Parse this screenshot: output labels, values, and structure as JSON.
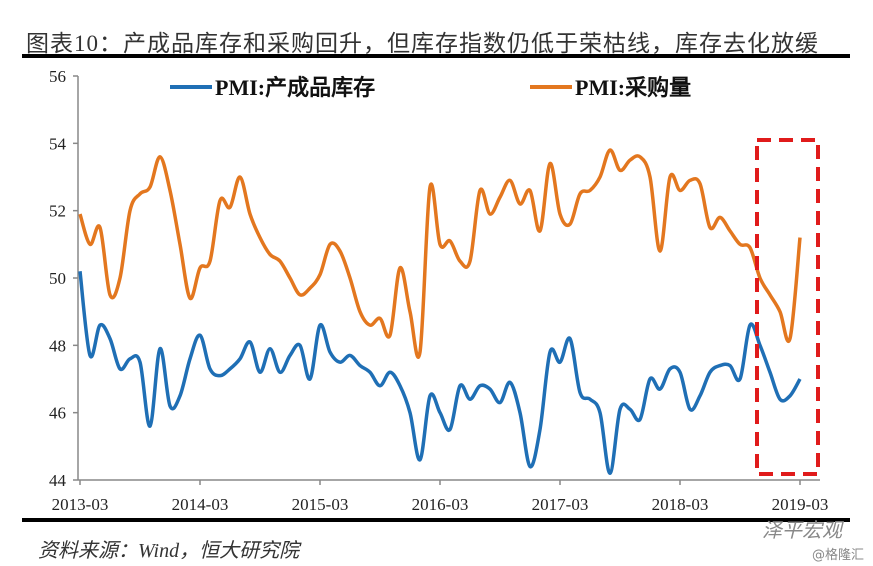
{
  "title": "图表10：产成品库存和采购回升，但库存指数仍低于荣枯线，库存去化放缓",
  "source": "资料来源：Wind，恒大研究院",
  "watermarks": [
    "泽平宏观",
    "@格隆汇"
  ],
  "chart_data": {
    "type": "line",
    "title": "图表10：产成品库存和采购回升，但库存指数仍低于荣枯线，库存去化放缓",
    "xlabel": "",
    "ylabel": "",
    "x_start": "2013-03",
    "x_end": "2019-03",
    "x_ticks": [
      "2013-03",
      "2014-03",
      "2015-03",
      "2016-03",
      "2017-03",
      "2018-03",
      "2019-03"
    ],
    "ylim": [
      44,
      56
    ],
    "y_ticks": [
      44,
      46,
      48,
      50,
      52,
      54,
      56
    ],
    "grid": false,
    "legend_position": "top",
    "annotation": "red dashed box highlighting 2018-11 to 2019-03",
    "series": [
      {
        "name": "PMI:产成品库存",
        "color": "#1f6fb5",
        "values": [
          50.2,
          47.7,
          48.6,
          48.2,
          47.3,
          47.6,
          47.5,
          45.6,
          47.9,
          46.2,
          46.5,
          47.6,
          48.3,
          47.3,
          47.1,
          47.3,
          47.6,
          48.1,
          47.2,
          47.9,
          47.2,
          47.7,
          48.0,
          47.0,
          48.6,
          47.8,
          47.5,
          47.7,
          47.4,
          47.2,
          46.8,
          47.2,
          46.8,
          46.0,
          44.6,
          46.5,
          46.0,
          45.5,
          46.8,
          46.4,
          46.8,
          46.7,
          46.3,
          46.9,
          46.0,
          44.4,
          45.5,
          47.8,
          47.5,
          48.2,
          46.6,
          46.4,
          46.0,
          44.2,
          46.1,
          46.1,
          45.8,
          47.0,
          46.7,
          47.3,
          47.2,
          46.1,
          46.5,
          47.2,
          47.4,
          47.4,
          47.0,
          48.6,
          48.0,
          47.2,
          46.4,
          46.5,
          47.0
        ]
      },
      {
        "name": "PMI:采购量",
        "color": "#e3771f",
        "values": [
          51.9,
          51.0,
          51.5,
          49.5,
          50.0,
          52.0,
          52.5,
          52.7,
          53.6,
          52.6,
          51.0,
          49.4,
          50.3,
          50.5,
          52.3,
          52.1,
          53.0,
          51.9,
          51.2,
          50.7,
          50.5,
          50.0,
          49.5,
          49.7,
          50.1,
          51.0,
          50.8,
          50.0,
          49.0,
          48.6,
          48.8,
          48.3,
          50.3,
          49.0,
          47.8,
          52.7,
          51.0,
          51.1,
          50.5,
          50.5,
          52.6,
          51.9,
          52.4,
          52.9,
          52.2,
          52.6,
          51.4,
          53.4,
          51.9,
          51.6,
          52.5,
          52.6,
          53.0,
          53.8,
          53.2,
          53.5,
          53.6,
          53.0,
          50.8,
          53.0,
          52.6,
          52.9,
          52.8,
          51.5,
          51.8,
          51.4,
          51.0,
          50.9,
          50.0,
          49.5,
          49.0,
          48.2,
          51.2
        ]
      }
    ]
  }
}
